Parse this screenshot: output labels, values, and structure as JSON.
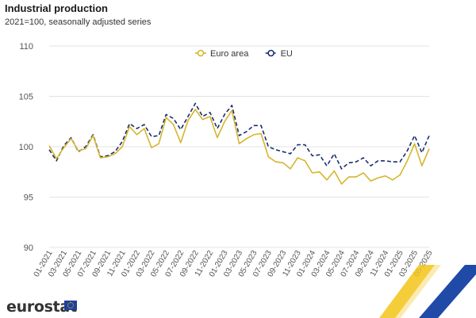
{
  "header": {
    "title": "Industrial production",
    "subtitle": "2021=100, seasonally adjusted series"
  },
  "brand": {
    "logo_text": "eurostat",
    "logo_icon": "eu-flag-icon"
  },
  "colors": {
    "euro_area": "#d6b52e",
    "eu": "#1a2f6f",
    "grid": "#e3e3e3"
  },
  "chart_data": {
    "type": "line",
    "title": "Industrial production",
    "subtitle": "2021=100, seasonally adjusted series",
    "xlabel": "",
    "ylabel": "",
    "ylim": [
      90,
      110
    ],
    "yticks": [
      90,
      95,
      100,
      105,
      110
    ],
    "grid": true,
    "legend_position": "top",
    "x": [
      "01-2021",
      "02-2021",
      "03-2021",
      "04-2021",
      "05-2021",
      "06-2021",
      "07-2021",
      "08-2021",
      "09-2021",
      "10-2021",
      "11-2021",
      "12-2021",
      "01-2022",
      "02-2022",
      "03-2022",
      "04-2022",
      "05-2022",
      "06-2022",
      "07-2022",
      "08-2022",
      "09-2022",
      "10-2022",
      "11-2022",
      "12-2022",
      "01-2023",
      "02-2023",
      "03-2023",
      "04-2023",
      "05-2023",
      "06-2023",
      "07-2023",
      "08-2023",
      "09-2023",
      "10-2023",
      "11-2023",
      "12-2023",
      "01-2024",
      "02-2024",
      "03-2024",
      "04-2024",
      "05-2024",
      "06-2024",
      "07-2024",
      "08-2024",
      "09-2024",
      "10-2024",
      "11-2024",
      "12-2024",
      "01-2025",
      "02-2025",
      "03-2025",
      "04-2025",
      "05-2025"
    ],
    "x_tick_labels": [
      "01-2021",
      "03-2021",
      "05-2021",
      "07-2021",
      "09-2021",
      "11-2021",
      "01-2022",
      "03-2022",
      "05-2022",
      "07-2022",
      "09-2022",
      "11-2022",
      "01-2023",
      "03-2023",
      "05-2023",
      "07-2023",
      "09-2023",
      "11-2023",
      "01-2024",
      "03-2024",
      "05-2024",
      "07-2024",
      "09-2024",
      "11-2024",
      "01-2025",
      "03-2025",
      "05-2025"
    ],
    "series": [
      {
        "name": "Euro area",
        "color": "#d6b52e",
        "style": "solid",
        "values": [
          100.1,
          98.8,
          99.9,
          100.8,
          99.6,
          99.8,
          101.1,
          98.9,
          99.0,
          99.3,
          100.0,
          102.0,
          101.2,
          101.8,
          99.9,
          100.3,
          102.9,
          102.2,
          100.4,
          102.6,
          103.7,
          102.7,
          103.0,
          100.9,
          102.5,
          103.6,
          100.3,
          100.8,
          101.2,
          101.3,
          99.0,
          98.5,
          98.4,
          97.8,
          98.9,
          98.6,
          97.4,
          97.5,
          96.7,
          97.6,
          96.3,
          97.0,
          97.0,
          97.4,
          96.6,
          96.9,
          97.1,
          96.7,
          97.2,
          98.6,
          100.3,
          98.1,
          99.8
        ]
      },
      {
        "name": "EU",
        "color": "#1a2f6f",
        "style": "dashed",
        "values": [
          99.7,
          98.6,
          100.1,
          100.9,
          99.5,
          100.0,
          101.2,
          99.0,
          99.1,
          99.5,
          100.5,
          102.3,
          101.8,
          102.2,
          101.0,
          101.1,
          103.2,
          102.8,
          101.7,
          103.0,
          104.3,
          103.0,
          103.4,
          101.8,
          103.2,
          104.1,
          101.1,
          101.5,
          102.1,
          102.1,
          100.0,
          99.7,
          99.5,
          99.3,
          100.2,
          100.2,
          99.1,
          99.2,
          98.1,
          99.3,
          97.8,
          98.4,
          98.5,
          98.9,
          98.1,
          98.6,
          98.6,
          98.5,
          98.5,
          99.6,
          101.1,
          99.4,
          101.1
        ]
      }
    ]
  }
}
